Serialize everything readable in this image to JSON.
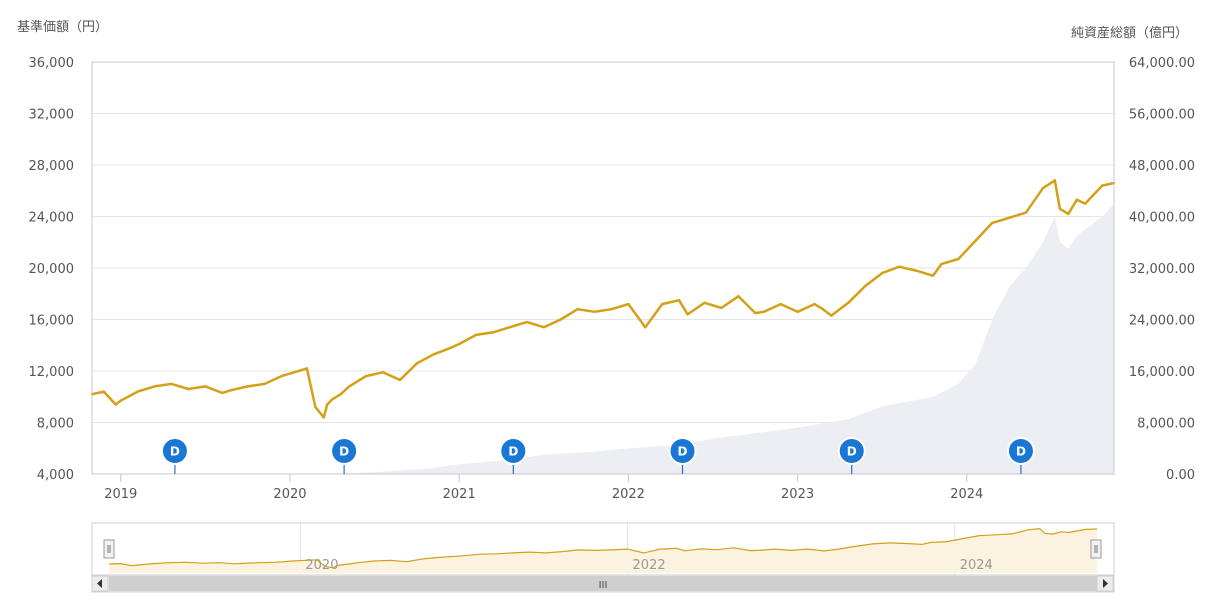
{
  "chart_data": {
    "type": "line",
    "left_axis_title": "基準価額（円）",
    "right_axis_title": "純資産総額（億円）",
    "left_ticks": [
      "4,000",
      "8,000",
      "12,000",
      "16,000",
      "20,000",
      "24,000",
      "28,000",
      "32,000",
      "36,000"
    ],
    "right_ticks": [
      "0.00",
      "8,000.00",
      "16,000.00",
      "24,000.00",
      "32,000.00",
      "40,000.00",
      "48,000.00",
      "56,000.00",
      "64,000.00"
    ],
    "ylim_left": [
      4000,
      36000
    ],
    "ylim_right": [
      0,
      64000
    ],
    "x_ticks": [
      "2019",
      "2020",
      "2021",
      "2022",
      "2023",
      "2024"
    ],
    "x_range": [
      2018.83,
      2024.87
    ],
    "grid": true,
    "series": [
      {
        "name": "基準価額",
        "axis": "left",
        "color": "#d4a017",
        "x": [
          2018.83,
          2018.9,
          2018.97,
          2019.0,
          2019.1,
          2019.2,
          2019.3,
          2019.4,
          2019.5,
          2019.6,
          2019.65,
          2019.75,
          2019.85,
          2019.95,
          2020.0,
          2020.1,
          2020.15,
          2020.2,
          2020.22,
          2020.25,
          2020.3,
          2020.35,
          2020.45,
          2020.55,
          2020.65,
          2020.75,
          2020.85,
          2020.95,
          2021.0,
          2021.1,
          2021.2,
          2021.3,
          2021.4,
          2021.5,
          2021.6,
          2021.7,
          2021.8,
          2021.9,
          2022.0,
          2022.1,
          2022.2,
          2022.3,
          2022.35,
          2022.45,
          2022.55,
          2022.65,
          2022.75,
          2022.8,
          2022.9,
          2023.0,
          2023.1,
          2023.15,
          2023.2,
          2023.3,
          2023.4,
          2023.5,
          2023.6,
          2023.7,
          2023.8,
          2023.85,
          2023.95,
          2024.05,
          2024.15,
          2024.25,
          2024.35,
          2024.45,
          2024.52,
          2024.55,
          2024.6,
          2024.65,
          2024.7,
          2024.75,
          2024.8,
          2024.87
        ],
        "values": [
          10200,
          10400,
          9400,
          9700,
          10400,
          10800,
          11000,
          10600,
          10800,
          10300,
          10500,
          10800,
          11000,
          11600,
          11800,
          12200,
          9200,
          8400,
          9400,
          9800,
          10200,
          10800,
          11600,
          11900,
          11300,
          12600,
          13300,
          13800,
          14100,
          14800,
          15000,
          15400,
          15800,
          15400,
          16000,
          16800,
          16600,
          16800,
          17200,
          15400,
          17200,
          17500,
          16400,
          17300,
          16900,
          17800,
          16500,
          16600,
          17200,
          16600,
          17200,
          16800,
          16300,
          17300,
          18600,
          19600,
          20100,
          19800,
          19400,
          20300,
          20700,
          22100,
          23500,
          23900,
          24300,
          26200,
          26800,
          24600,
          24200,
          25300,
          25000,
          25700,
          26400,
          26600
        ]
      },
      {
        "name": "純資産総額",
        "axis": "right",
        "color": "#eceef4",
        "x": [
          2018.83,
          2019.5,
          2020.0,
          2020.3,
          2020.5,
          2020.8,
          2021.0,
          2021.3,
          2021.5,
          2021.8,
          2022.0,
          2022.3,
          2022.5,
          2022.8,
          2023.0,
          2023.3,
          2023.5,
          2023.8,
          2023.95,
          2024.05,
          2024.15,
          2024.25,
          2024.35,
          2024.45,
          2024.52,
          2024.55,
          2024.6,
          2024.65,
          2024.7,
          2024.8,
          2024.87
        ],
        "values": [
          0,
          0,
          0,
          100,
          300,
          800,
          1500,
          2200,
          3000,
          3500,
          4000,
          4500,
          5500,
          6500,
          7200,
          8500,
          10500,
          12000,
          14000,
          17000,
          24000,
          29000,
          32000,
          36000,
          40000,
          36000,
          35000,
          37000,
          38000,
          40000,
          42000
        ]
      }
    ],
    "dividend_markers": [
      "D",
      "D",
      "D",
      "D",
      "D",
      "D"
    ],
    "dividend_x": [
      2019.32,
      2020.32,
      2021.32,
      2022.32,
      2023.32,
      2024.32
    ],
    "navigator": {
      "x_ticks": [
        "2020",
        "2022",
        "2024"
      ],
      "grip": "III"
    }
  }
}
